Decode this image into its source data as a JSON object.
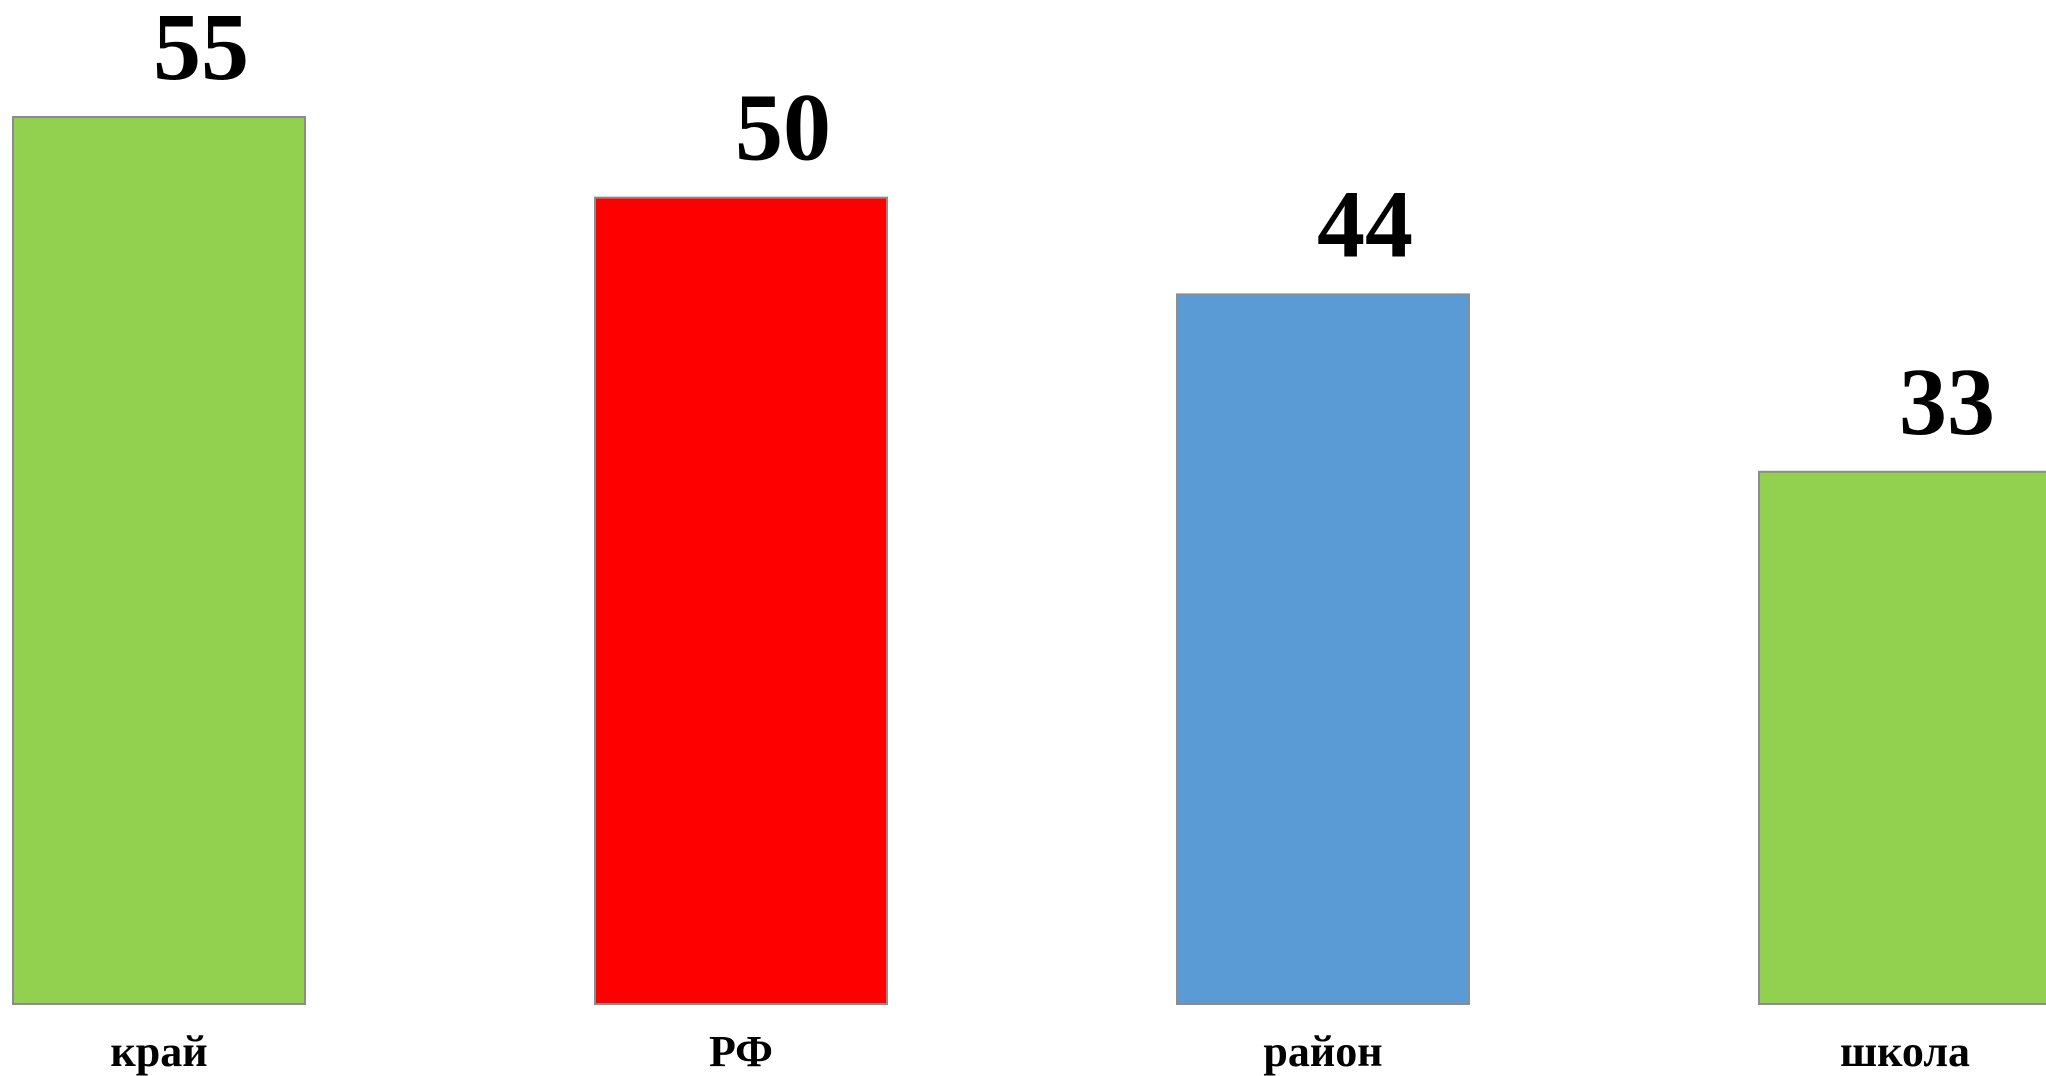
{
  "chart_data": {
    "type": "bar",
    "categories": [
      "край",
      "РФ",
      "район",
      "школа"
    ],
    "values": [
      55,
      50,
      44,
      33
    ],
    "colors": [
      "#92d050",
      "#ff0000",
      "#5b9bd5",
      "#92d050"
    ],
    "title": "",
    "xlabel": "",
    "ylabel": "",
    "ylim": [
      0,
      55
    ],
    "grid": false,
    "legend": "none"
  }
}
